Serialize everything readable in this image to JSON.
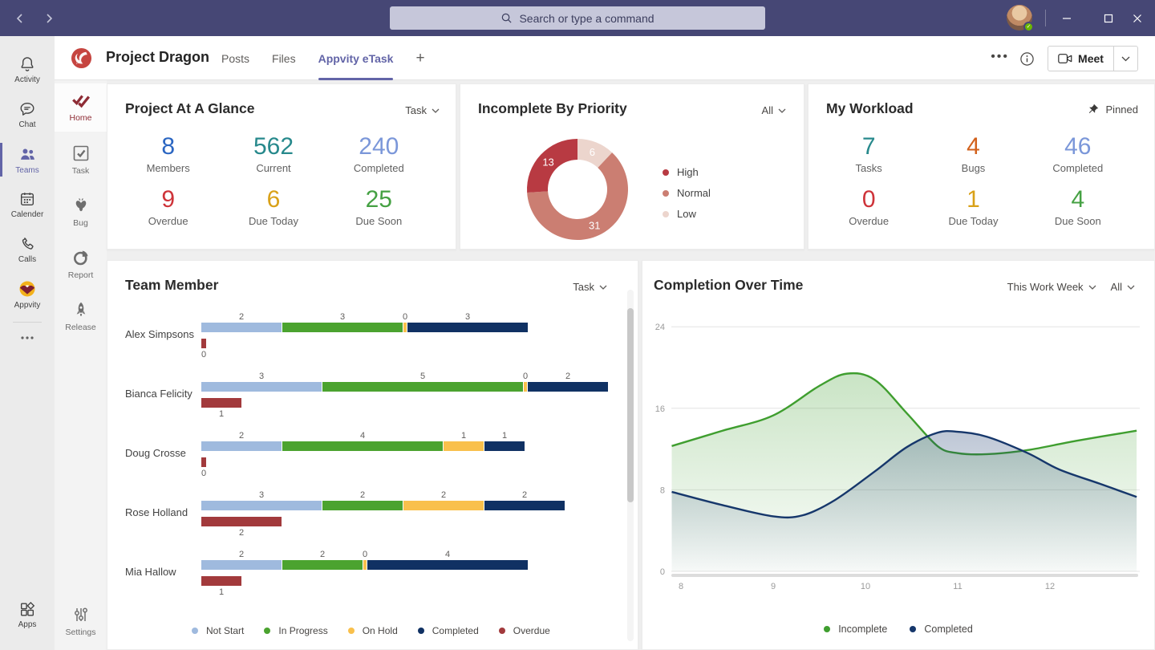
{
  "titlebar": {
    "search_placeholder": "Search or type a command"
  },
  "rail": {
    "items": [
      {
        "label": "Activity"
      },
      {
        "label": "Chat"
      },
      {
        "label": "Teams",
        "active": true
      },
      {
        "label": "Calender"
      },
      {
        "label": "Calls"
      },
      {
        "label": "Appvity"
      }
    ],
    "apps_label": "Apps"
  },
  "sidebar": {
    "items": [
      {
        "label": "Home",
        "active": true
      },
      {
        "label": "Task"
      },
      {
        "label": "Bug"
      },
      {
        "label": "Report"
      },
      {
        "label": "Release"
      }
    ],
    "settings_label": "Settings"
  },
  "header": {
    "team_name": "Project Dragon",
    "tabs": [
      {
        "label": "Posts"
      },
      {
        "label": "Files"
      },
      {
        "label": "Appvity eTask",
        "active": true
      }
    ],
    "add_tab": "+",
    "meet_label": "Meet"
  },
  "glance": {
    "title": "Project At A Glance",
    "filter": "Task",
    "stats": [
      {
        "value": "8",
        "label": "Members",
        "color": "#2b66c2"
      },
      {
        "value": "562",
        "label": "Current",
        "color": "#27898c"
      },
      {
        "value": "240",
        "label": "Completed",
        "color": "#7b97d9"
      },
      {
        "value": "9",
        "label": "Overdue",
        "color": "#ce3339"
      },
      {
        "value": "6",
        "label": "Due Today",
        "color": "#d9a118"
      },
      {
        "value": "25",
        "label": "Due Soon",
        "color": "#45a143"
      }
    ]
  },
  "priority": {
    "title": "Incomplete By Priority",
    "filter": "All",
    "chart": {
      "type": "donut",
      "slices": [
        {
          "label": "Low",
          "value": 6,
          "color": "#ecd5cd"
        },
        {
          "label": "Normal",
          "value": 31,
          "color": "#cb7e72"
        },
        {
          "label": "High",
          "value": 13,
          "color": "#b83a42"
        }
      ]
    },
    "legend": [
      {
        "label": "High",
        "color": "#b83a42"
      },
      {
        "label": "Normal",
        "color": "#cb7e72"
      },
      {
        "label": "Low",
        "color": "#ecd5cd"
      }
    ]
  },
  "workload": {
    "title": "My Workload",
    "pinned_label": "Pinned",
    "stats": [
      {
        "value": "7",
        "label": "Tasks",
        "color": "#27898c"
      },
      {
        "value": "4",
        "label": "Bugs",
        "color": "#d2611c"
      },
      {
        "value": "46",
        "label": "Completed",
        "color": "#7b97d9"
      },
      {
        "value": "0",
        "label": "Overdue",
        "color": "#ce3339"
      },
      {
        "value": "1",
        "label": "Due Today",
        "color": "#d9a118"
      },
      {
        "value": "4",
        "label": "Due Soon",
        "color": "#45a143"
      }
    ]
  },
  "team": {
    "title": "Team Member",
    "filter": "Task",
    "chart": {
      "type": "bar",
      "series_colors": [
        "#9fbade",
        "#4ba32f",
        "#f9c04c",
        "#103163"
      ],
      "overdue_color": "#a23a3c",
      "rows": [
        {
          "name": "Alex Simpsons",
          "values": [
            2,
            3,
            0,
            3
          ],
          "overdue": 0
        },
        {
          "name": "Bianca Felicity",
          "values": [
            3,
            5,
            0,
            2
          ],
          "overdue": 1
        },
        {
          "name": "Doug Crosse",
          "values": [
            2,
            4,
            1,
            1
          ],
          "overdue": 0
        },
        {
          "name": "Rose Holland",
          "values": [
            3,
            2,
            2,
            2
          ],
          "overdue": 2
        },
        {
          "name": "Mia Hallow",
          "values": [
            2,
            2,
            0,
            4
          ],
          "overdue": 1
        }
      ]
    },
    "legend": [
      {
        "label": "Not Start",
        "color": "#9fbade"
      },
      {
        "label": "In Progress",
        "color": "#4ba32f"
      },
      {
        "label": "On Hold",
        "color": "#f9c04c"
      },
      {
        "label": "Completed",
        "color": "#103163"
      },
      {
        "label": "Overdue",
        "color": "#a23a3c"
      }
    ]
  },
  "completion": {
    "title": "Completion Over Time",
    "filters": [
      "This Work Week",
      "All"
    ],
    "chart_data": {
      "type": "area",
      "x_ticks": [
        8,
        9,
        10,
        11,
        12
      ],
      "y_ticks": [
        0,
        8,
        16,
        24
      ],
      "ylim": [
        0,
        24
      ],
      "series": [
        {
          "name": "Incomplete",
          "color": "#3f9e2f",
          "points": [
            [
              7.9,
              12.3
            ],
            [
              8.45,
              13.8
            ],
            [
              9.0,
              15.3
            ],
            [
              9.5,
              18.2
            ],
            [
              9.8,
              19.4
            ],
            [
              10.1,
              18.8
            ],
            [
              10.45,
              15.5
            ],
            [
              10.78,
              12.3
            ],
            [
              11.0,
              11.6
            ],
            [
              11.32,
              11.5
            ],
            [
              11.76,
              11.9
            ],
            [
              12.28,
              12.8
            ],
            [
              12.94,
              13.8
            ]
          ]
        },
        {
          "name": "Completed",
          "color": "#16376b",
          "points": [
            [
              7.9,
              7.8
            ],
            [
              8.45,
              6.5
            ],
            [
              9.0,
              5.4
            ],
            [
              9.32,
              5.5
            ],
            [
              9.67,
              7.0
            ],
            [
              10.1,
              9.8
            ],
            [
              10.45,
              12.2
            ],
            [
              10.78,
              13.6
            ],
            [
              11.0,
              13.7
            ],
            [
              11.32,
              13.2
            ],
            [
              11.76,
              11.6
            ],
            [
              12.1,
              10.0
            ],
            [
              12.54,
              8.6
            ],
            [
              12.94,
              7.3
            ]
          ]
        }
      ]
    },
    "legend": [
      {
        "label": "Incomplete",
        "color": "#3f9e2f"
      },
      {
        "label": "Completed",
        "color": "#16376b"
      }
    ]
  }
}
